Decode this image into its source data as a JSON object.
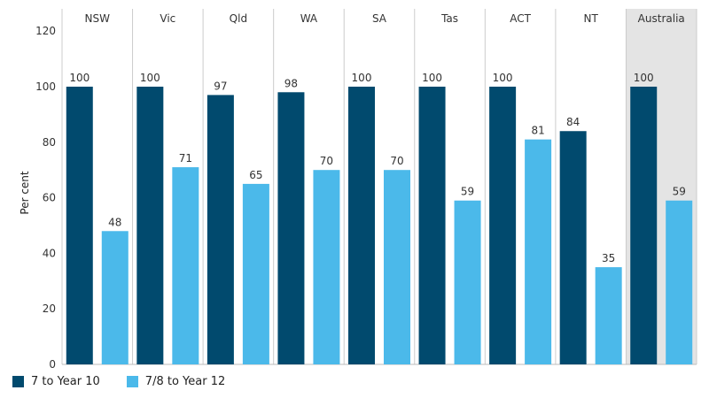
{
  "chart_data": {
    "type": "bar",
    "ylabel": "Per cent",
    "ylim": [
      0,
      120
    ],
    "yticks": [
      0,
      20,
      40,
      60,
      80,
      100,
      120
    ],
    "categories": [
      "NSW",
      "Vic",
      "Qld",
      "WA",
      "SA",
      "Tas",
      "ACT",
      "NT",
      "Australia"
    ],
    "highlighted_category": "Australia",
    "series": [
      {
        "name": "7 to Year 10",
        "color": "#014a6e",
        "values": [
          100,
          100,
          97,
          98,
          100,
          100,
          100,
          84,
          100
        ]
      },
      {
        "name": "7/8 to Year 12",
        "color": "#4bb9ea",
        "values": [
          48,
          71,
          65,
          70,
          70,
          59,
          81,
          35,
          59
        ]
      }
    ],
    "grid": false,
    "legend_position": "bottom-left"
  },
  "colors": {
    "highlight_panel": "#e4e4e4",
    "divider": "#cccccc"
  }
}
